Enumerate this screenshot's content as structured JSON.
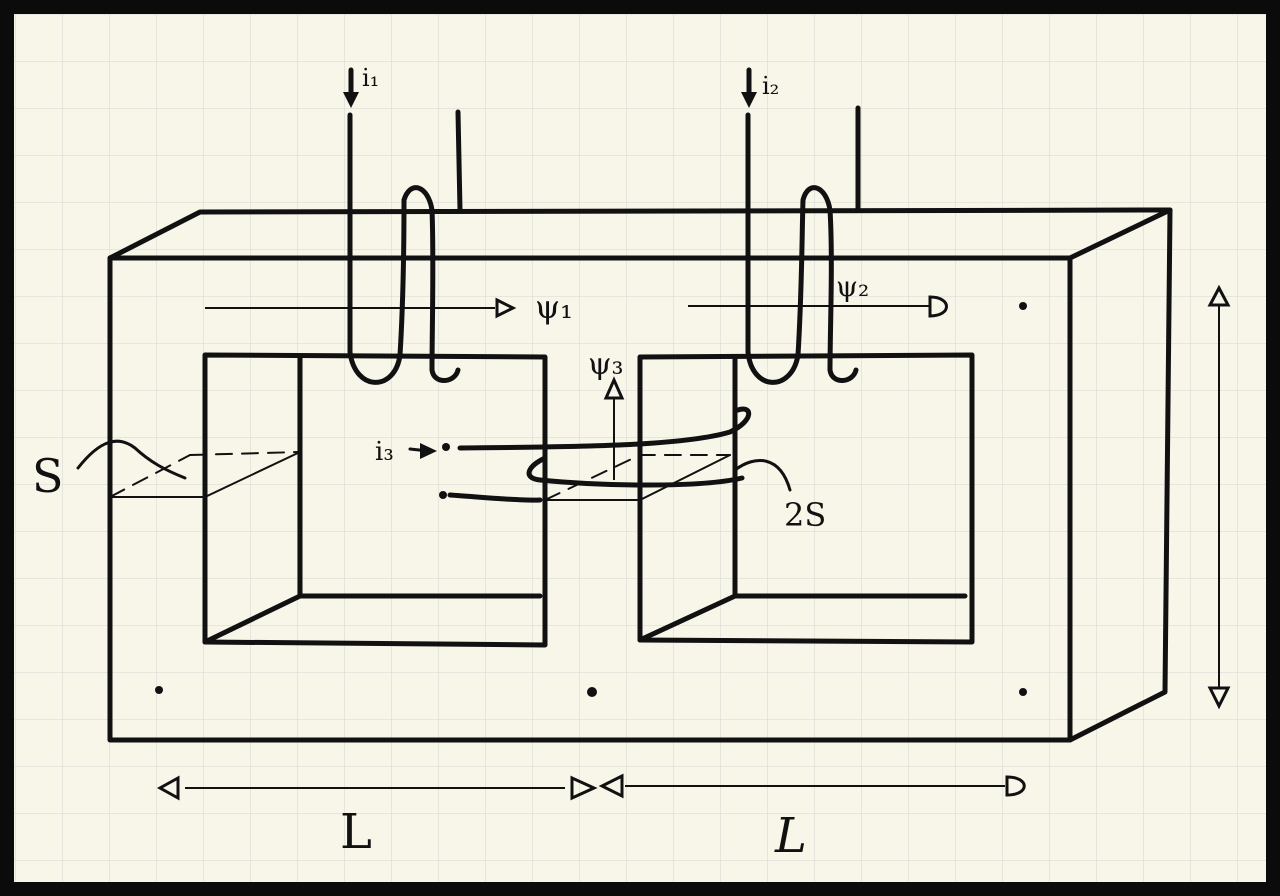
{
  "colors": {
    "paper": "#f8f5e9",
    "grid": "#dcdcd6",
    "ink": "#111111",
    "frame": "#0b0b0b"
  },
  "labels": {
    "current_1": "i₁",
    "current_2": "i₂",
    "current_3": "i₃",
    "flux_1": "ψ₁",
    "flux_2": "ψ₂",
    "flux_3": "ψ₃",
    "area_s": "S",
    "area_2s": "2S",
    "length_left": "L",
    "length_right": "L"
  }
}
